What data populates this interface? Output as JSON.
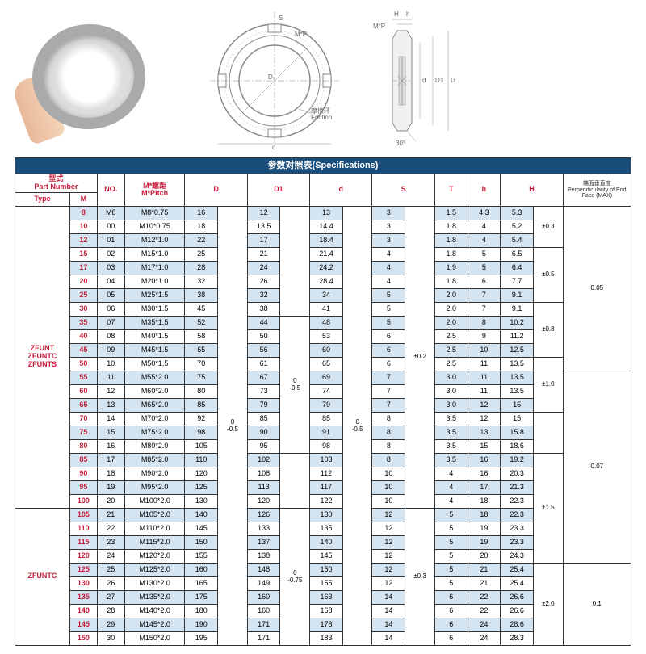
{
  "title": "参数对照表(Specifications)",
  "diagram": {
    "labels": [
      "S",
      "M*P",
      "D₁",
      "d",
      "摩擦环",
      "Friction",
      "H",
      "h",
      "M*P",
      "d",
      "D1",
      "D",
      "30°"
    ]
  },
  "headers": {
    "partNumber": "型式\nPart Number",
    "type": "Type",
    "m": "M",
    "no": "NO.",
    "pitch": "M*螺距\nM*Pitch",
    "d_big": "D",
    "d1": "D1",
    "d_small": "d",
    "s": "S",
    "t": "T",
    "h": "h",
    "h_big": "H",
    "perp": "端面垂直度\nPerpendicularity of End Face (MAX)"
  },
  "types": {
    "group1": "ZFUNT\nZFUNTC\nZFUNTS",
    "group2": "ZFUNTC"
  },
  "tol": {
    "d_05": "0\n-0.5",
    "d_075": "0\n-0.75",
    "p02": "±0.2",
    "p03": "±0.3",
    "h03": "±0.3",
    "h05": "±0.5",
    "h08": "±0.8",
    "h10": "±1.0",
    "h15": "±1.5",
    "h20": "±2.0",
    "f005": "0.05",
    "f007": "0.07",
    "f01": "0.1"
  },
  "rows": [
    {
      "m": "8",
      "no": "M8",
      "pitch": "M8*0.75",
      "D": "16",
      "D1": "12",
      "d": "13",
      "S": "3",
      "T": "1.5",
      "h": "4.3",
      "H": "5.3",
      "alt": true
    },
    {
      "m": "10",
      "no": "00",
      "pitch": "M10*0.75",
      "D": "18",
      "D1": "13.5",
      "d": "14.4",
      "S": "3",
      "T": "1.8",
      "h": "4",
      "H": "5.2"
    },
    {
      "m": "12",
      "no": "01",
      "pitch": "M12*1.0",
      "D": "22",
      "D1": "17",
      "d": "18.4",
      "S": "3",
      "T": "1.8",
      "h": "4",
      "H": "5.4",
      "alt": true
    },
    {
      "m": "15",
      "no": "02",
      "pitch": "M15*1.0",
      "D": "25",
      "D1": "21",
      "d": "21.4",
      "S": "4",
      "T": "1.8",
      "h": "5",
      "H": "6.5"
    },
    {
      "m": "17",
      "no": "03",
      "pitch": "M17*1.0",
      "D": "28",
      "D1": "24",
      "d": "24.2",
      "S": "4",
      "T": "1.9",
      "h": "5",
      "H": "6.4",
      "alt": true
    },
    {
      "m": "20",
      "no": "04",
      "pitch": "M20*1.0",
      "D": "32",
      "D1": "26",
      "d": "28.4",
      "S": "4",
      "T": "1.8",
      "h": "6",
      "H": "7.7"
    },
    {
      "m": "25",
      "no": "05",
      "pitch": "M25*1.5",
      "D": "38",
      "D1": "32",
      "d": "34",
      "S": "5",
      "T": "2.0",
      "h": "7",
      "H": "9.1",
      "alt": true
    },
    {
      "m": "30",
      "no": "06",
      "pitch": "M30*1.5",
      "D": "45",
      "D1": "38",
      "d": "41",
      "S": "5",
      "T": "2.0",
      "h": "7",
      "H": "9.1"
    },
    {
      "m": "35",
      "no": "07",
      "pitch": "M35*1.5",
      "D": "52",
      "D1": "44",
      "d": "48",
      "S": "5",
      "T": "2.0",
      "h": "8",
      "H": "10.2",
      "alt": true
    },
    {
      "m": "40",
      "no": "08",
      "pitch": "M40*1.5",
      "D": "58",
      "D1": "50",
      "d": "53",
      "S": "6",
      "T": "2.5",
      "h": "9",
      "H": "11.2"
    },
    {
      "m": "45",
      "no": "09",
      "pitch": "M45*1.5",
      "D": "65",
      "D1": "56",
      "d": "60",
      "S": "6",
      "T": "2.5",
      "h": "10",
      "H": "12.5",
      "alt": true
    },
    {
      "m": "50",
      "no": "10",
      "pitch": "M50*1.5",
      "D": "70",
      "D1": "61",
      "d": "65",
      "S": "6",
      "T": "2.5",
      "h": "11",
      "H": "13.5"
    },
    {
      "m": "55",
      "no": "11",
      "pitch": "M55*2.0",
      "D": "75",
      "D1": "67",
      "d": "69",
      "S": "7",
      "T": "3.0",
      "h": "11",
      "H": "13.5",
      "alt": true
    },
    {
      "m": "60",
      "no": "12",
      "pitch": "M60*2.0",
      "D": "80",
      "D1": "73",
      "d": "74",
      "S": "7",
      "T": "3.0",
      "h": "11",
      "H": "13.5"
    },
    {
      "m": "65",
      "no": "13",
      "pitch": "M65*2.0",
      "D": "85",
      "D1": "79",
      "d": "79",
      "S": "7",
      "T": "3.0",
      "h": "12",
      "H": "15",
      "alt": true
    },
    {
      "m": "70",
      "no": "14",
      "pitch": "M70*2.0",
      "D": "92",
      "D1": "85",
      "d": "85",
      "S": "8",
      "T": "3.5",
      "h": "12",
      "H": "15"
    },
    {
      "m": "75",
      "no": "15",
      "pitch": "M75*2.0",
      "D": "98",
      "D1": "90",
      "d": "91",
      "S": "8",
      "T": "3.5",
      "h": "13",
      "H": "15.8",
      "alt": true
    },
    {
      "m": "80",
      "no": "16",
      "pitch": "M80*2.0",
      "D": "105",
      "D1": "95",
      "d": "98",
      "S": "8",
      "T": "3.5",
      "h": "15",
      "H": "18.6"
    },
    {
      "m": "85",
      "no": "17",
      "pitch": "M85*2.0",
      "D": "110",
      "D1": "102",
      "d": "103",
      "S": "8",
      "T": "3.5",
      "h": "16",
      "H": "19.2",
      "alt": true
    },
    {
      "m": "90",
      "no": "18",
      "pitch": "M90*2.0",
      "D": "120",
      "D1": "108",
      "d": "112",
      "S": "10",
      "T": "4",
      "h": "16",
      "H": "20.3"
    },
    {
      "m": "95",
      "no": "19",
      "pitch": "M95*2.0",
      "D": "125",
      "D1": "113",
      "d": "117",
      "S": "10",
      "T": "4",
      "h": "17",
      "H": "21.3",
      "alt": true
    },
    {
      "m": "100",
      "no": "20",
      "pitch": "M100*2.0",
      "D": "130",
      "D1": "120",
      "d": "122",
      "S": "10",
      "T": "4",
      "h": "18",
      "H": "22.3"
    },
    {
      "m": "105",
      "no": "21",
      "pitch": "M105*2.0",
      "D": "140",
      "D1": "126",
      "d": "130",
      "S": "12",
      "T": "5",
      "h": "18",
      "H": "22.3",
      "alt": true
    },
    {
      "m": "110",
      "no": "22",
      "pitch": "M110*2.0",
      "D": "145",
      "D1": "133",
      "d": "135",
      "S": "12",
      "T": "5",
      "h": "19",
      "H": "23.3"
    },
    {
      "m": "115",
      "no": "23",
      "pitch": "M115*2.0",
      "D": "150",
      "D1": "137",
      "d": "140",
      "S": "12",
      "T": "5",
      "h": "19",
      "H": "23.3",
      "alt": true
    },
    {
      "m": "120",
      "no": "24",
      "pitch": "M120*2.0",
      "D": "155",
      "D1": "138",
      "d": "145",
      "S": "12",
      "T": "5",
      "h": "20",
      "H": "24.3"
    },
    {
      "m": "125",
      "no": "25",
      "pitch": "M125*2.0",
      "D": "160",
      "D1": "148",
      "d": "150",
      "S": "12",
      "T": "5",
      "h": "21",
      "H": "25.4",
      "alt": true
    },
    {
      "m": "130",
      "no": "26",
      "pitch": "M130*2.0",
      "D": "165",
      "D1": "149",
      "d": "155",
      "S": "12",
      "T": "5",
      "h": "21",
      "H": "25.4"
    },
    {
      "m": "135",
      "no": "27",
      "pitch": "M135*2.0",
      "D": "175",
      "D1": "160",
      "d": "163",
      "S": "14",
      "T": "6",
      "h": "22",
      "H": "26.6",
      "alt": true
    },
    {
      "m": "140",
      "no": "28",
      "pitch": "M140*2.0",
      "D": "180",
      "D1": "160",
      "d": "168",
      "S": "14",
      "T": "6",
      "h": "22",
      "H": "26.6"
    },
    {
      "m": "145",
      "no": "29",
      "pitch": "M145*2.0",
      "D": "190",
      "D1": "171",
      "d": "178",
      "S": "14",
      "T": "6",
      "h": "24",
      "H": "28.6",
      "alt": true
    },
    {
      "m": "150",
      "no": "30",
      "pitch": "M150*2.0",
      "D": "195",
      "D1": "171",
      "d": "183",
      "S": "14",
      "T": "6",
      "h": "24",
      "H": "28.3"
    }
  ]
}
